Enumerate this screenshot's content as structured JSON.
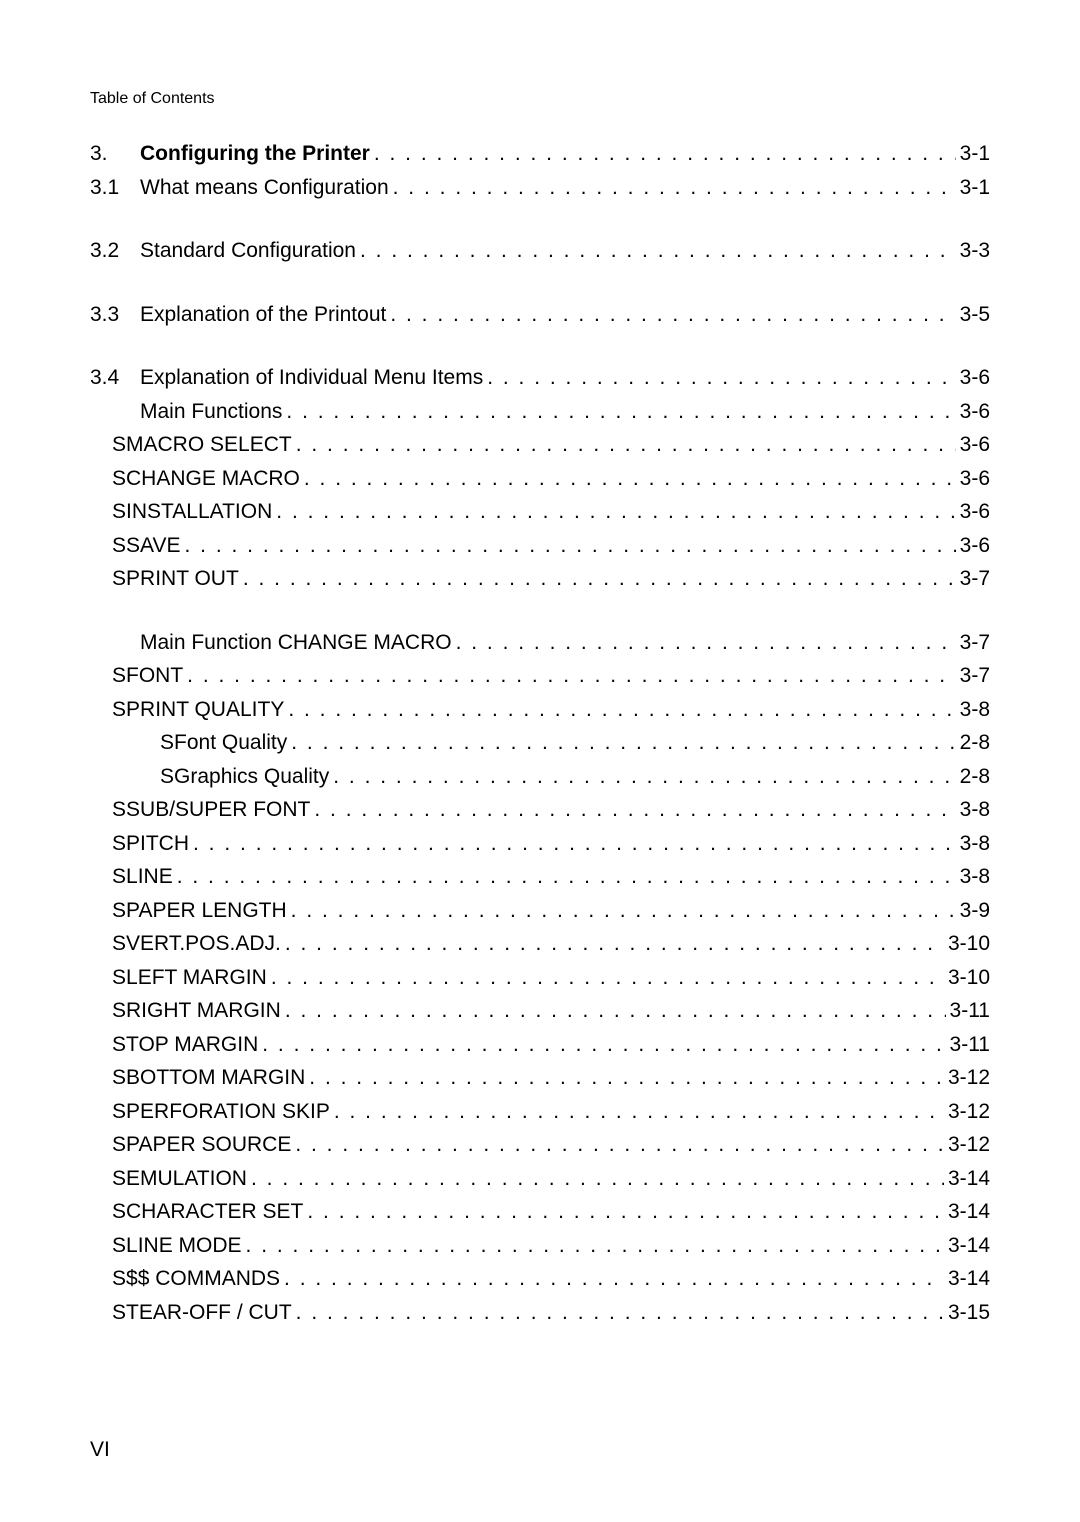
{
  "header": "Table of Contents",
  "page_footer": "VI",
  "dots": ". . . . . . . . . . . . . . . . . . . . . . . . . . . . . . . . . . . . . . . . . . . . . . . . . . . . . . . . . . . . . . . . . . . . . . . . . . . . . . . .",
  "entries": [
    {
      "num": "3.",
      "label": "Configuring the Printer",
      "page": "3-1",
      "bold": true,
      "indent": 0,
      "bullet": false
    },
    {
      "num": "3.1",
      "label": "What means Configuration",
      "page": "3-1",
      "bold": false,
      "indent": 0,
      "bullet": false
    },
    {
      "gap": true
    },
    {
      "num": "3.2",
      "label": "Standard Configuration",
      "page": "3-3",
      "bold": false,
      "indent": 0,
      "bullet": false
    },
    {
      "gap": true
    },
    {
      "num": "3.3",
      "label": "Explanation of the Printout",
      "page": "3-5",
      "bold": false,
      "indent": 0,
      "bullet": false
    },
    {
      "gap": true
    },
    {
      "num": "3.4",
      "label": "Explanation of Individual Menu Items",
      "page": "3-6",
      "bold": false,
      "indent": 0,
      "bullet": false
    },
    {
      "num": "",
      "label": "Main Functions",
      "page": "3-6",
      "bold": false,
      "indent": 1,
      "bullet": false
    },
    {
      "num": "",
      "label": "MACRO SELECT",
      "page": "3-6",
      "bold": false,
      "indent": 0,
      "bullet": true
    },
    {
      "num": "",
      "label": "CHANGE MACRO",
      "page": "3-6",
      "bold": false,
      "indent": 0,
      "bullet": true
    },
    {
      "num": "",
      "label": "INSTALLATION",
      "page": "3-6",
      "bold": false,
      "indent": 0,
      "bullet": true
    },
    {
      "num": "",
      "label": "SAVE",
      "page": "3-6",
      "bold": false,
      "indent": 0,
      "bullet": true
    },
    {
      "num": "",
      "label": "PRINT OUT",
      "page": "3-7",
      "bold": false,
      "indent": 0,
      "bullet": true
    },
    {
      "gap": true
    },
    {
      "num": "",
      "label": "Main Function CHANGE MACRO",
      "page": "3-7",
      "bold": false,
      "indent": 1,
      "bullet": false
    },
    {
      "num": "",
      "label": "FONT",
      "page": "3-7",
      "bold": false,
      "indent": 0,
      "bullet": true
    },
    {
      "num": "",
      "label": "PRINT QUALITY",
      "page": "3-8",
      "bold": false,
      "indent": 0,
      "bullet": true
    },
    {
      "num": "",
      "label": "Font Quality",
      "page": "2-8",
      "bold": false,
      "indent": 0,
      "bullet": true,
      "bullet2": true
    },
    {
      "num": "",
      "label": "Graphics Quality",
      "page": "2-8",
      "bold": false,
      "indent": 0,
      "bullet": true,
      "bullet2": true
    },
    {
      "num": "",
      "label": "SUB/SUPER FONT",
      "page": "3-8",
      "bold": false,
      "indent": 0,
      "bullet": true
    },
    {
      "num": "",
      "label": "PITCH",
      "page": "3-8",
      "bold": false,
      "indent": 0,
      "bullet": true
    },
    {
      "num": "",
      "label": "LINE",
      "page": "3-8",
      "bold": false,
      "indent": 0,
      "bullet": true
    },
    {
      "num": "",
      "label": "PAPER LENGTH",
      "page": "3-9",
      "bold": false,
      "indent": 0,
      "bullet": true
    },
    {
      "num": "",
      "label": "VERT.POS.ADJ.",
      "page": "3-10",
      "bold": false,
      "indent": 0,
      "bullet": true
    },
    {
      "num": "",
      "label": "LEFT MARGIN",
      "page": "3-10",
      "bold": false,
      "indent": 0,
      "bullet": true
    },
    {
      "num": "",
      "label": "RIGHT MARGIN",
      "page": "3-11",
      "bold": false,
      "indent": 0,
      "bullet": true
    },
    {
      "num": "",
      "label": "TOP MARGIN",
      "page": "3-11",
      "bold": false,
      "indent": 0,
      "bullet": true
    },
    {
      "num": "",
      "label": "BOTTOM MARGIN",
      "page": "3-12",
      "bold": false,
      "indent": 0,
      "bullet": true
    },
    {
      "num": "",
      "label": "PERFORATION SKIP",
      "page": "3-12",
      "bold": false,
      "indent": 0,
      "bullet": true
    },
    {
      "num": "",
      "label": "PAPER SOURCE",
      "page": "3-12",
      "bold": false,
      "indent": 0,
      "bullet": true
    },
    {
      "num": "",
      "label": "EMULATION",
      "page": "3-14",
      "bold": false,
      "indent": 0,
      "bullet": true
    },
    {
      "num": "",
      "label": "CHARACTER SET",
      "page": "3-14",
      "bold": false,
      "indent": 0,
      "bullet": true
    },
    {
      "num": "",
      "label": "LINE MODE",
      "page": "3-14",
      "bold": false,
      "indent": 0,
      "bullet": true
    },
    {
      "num": "",
      "label": "$$ COMMANDS",
      "page": "3-14",
      "bold": false,
      "indent": 0,
      "bullet": true
    },
    {
      "num": "",
      "label": "TEAR-OFF / CUT",
      "page": "3-15",
      "bold": false,
      "indent": 0,
      "bullet": true
    }
  ]
}
